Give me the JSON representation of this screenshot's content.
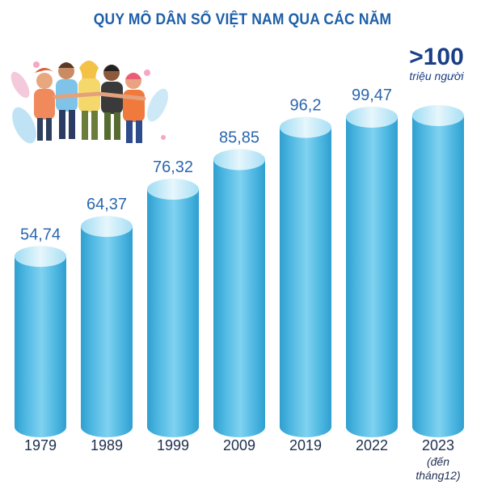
{
  "colors": {
    "title": "#1d5fa8",
    "bar_top": "#d6eef9",
    "bar_body": "#5ec0e6",
    "bar_shade": "#3aa4d2",
    "value_text": "#2a66ae",
    "axis_text": "#1f2f4f"
  },
  "chart_data": {
    "type": "bar",
    "title": "QUY MÔ DÂN SỐ VIỆT NAM QUA CÁC NĂM",
    "categories": [
      "1979",
      "1989",
      "1999",
      "2009",
      "2019",
      "2022",
      "2023"
    ],
    "values": [
      54.74,
      64.37,
      76.32,
      85.85,
      96.2,
      99.47,
      100
    ],
    "value_labels": [
      "54,74",
      "64,37",
      "76,32",
      "85,85",
      "96,2",
      "99,47",
      ">100"
    ],
    "unit_label": "triệu người",
    "category_notes": [
      "",
      "",
      "",
      "",
      "",
      "",
      "(đến tháng12)"
    ],
    "ylim": [
      0,
      100
    ],
    "grid": false,
    "legend": "none"
  },
  "illustration": {
    "icon": "people-group-illustration"
  }
}
